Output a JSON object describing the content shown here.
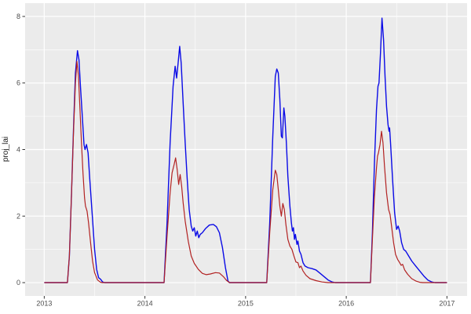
{
  "chart_data": {
    "type": "line",
    "title": "",
    "xlabel": "",
    "ylabel": "proj_lai",
    "grid": "on",
    "legend_position": "none",
    "panel_bg": "#EBEBEB",
    "grid_major_color": "#FFFFFF",
    "grid_minor_color": "#FFFFFF",
    "axis_text_color": "#4d4d4d",
    "tick_mark_color": "#333333",
    "xlim": [
      2012.81,
      2017.2
    ],
    "ylim": [
      -0.4,
      8.4
    ],
    "x_ticks": [
      2013,
      2014,
      2015,
      2016,
      2017
    ],
    "x_tick_labels": [
      "2013",
      "2014",
      "2015",
      "2016",
      "2017"
    ],
    "x_minor_ticks": [
      2013.5,
      2014.5,
      2015.5,
      2016.5
    ],
    "y_ticks": [
      0,
      2,
      4,
      6,
      8
    ],
    "y_tick_labels": [
      "0",
      "2",
      "4",
      "6",
      "8"
    ],
    "y_minor_ticks": [
      1,
      3,
      5,
      7
    ],
    "series": [
      {
        "name": "blue-line",
        "color": "#0B0BE6",
        "points": [
          [
            2013.0,
            0
          ],
          [
            2013.23,
            0
          ],
          [
            2013.25,
            0.8
          ],
          [
            2013.27,
            2.6
          ],
          [
            2013.29,
            4.6
          ],
          [
            2013.31,
            6.3
          ],
          [
            2013.33,
            6.97
          ],
          [
            2013.345,
            6.7
          ],
          [
            2013.36,
            5.9
          ],
          [
            2013.38,
            4.9
          ],
          [
            2013.395,
            4.15
          ],
          [
            2013.405,
            4.0
          ],
          [
            2013.42,
            4.15
          ],
          [
            2013.435,
            3.9
          ],
          [
            2013.45,
            3.2
          ],
          [
            2013.465,
            2.55
          ],
          [
            2013.48,
            1.9
          ],
          [
            2013.5,
            1.0
          ],
          [
            2013.52,
            0.4
          ],
          [
            2013.54,
            0.15
          ],
          [
            2013.56,
            0.1
          ],
          [
            2013.58,
            0.02
          ],
          [
            2013.6,
            0
          ],
          [
            2014.19,
            0
          ],
          [
            2014.22,
            1.8
          ],
          [
            2014.25,
            4.2
          ],
          [
            2014.28,
            5.9
          ],
          [
            2014.3,
            6.5
          ],
          [
            2014.315,
            6.15
          ],
          [
            2014.33,
            6.6
          ],
          [
            2014.345,
            7.1
          ],
          [
            2014.36,
            6.6
          ],
          [
            2014.38,
            5.4
          ],
          [
            2014.4,
            4.2
          ],
          [
            2014.42,
            3.1
          ],
          [
            2014.44,
            2.2
          ],
          [
            2014.46,
            1.7
          ],
          [
            2014.475,
            1.55
          ],
          [
            2014.49,
            1.65
          ],
          [
            2014.505,
            1.4
          ],
          [
            2014.52,
            1.55
          ],
          [
            2014.535,
            1.35
          ],
          [
            2014.55,
            1.45
          ],
          [
            2014.57,
            1.5
          ],
          [
            2014.6,
            1.62
          ],
          [
            2014.64,
            1.73
          ],
          [
            2014.68,
            1.75
          ],
          [
            2014.71,
            1.68
          ],
          [
            2014.74,
            1.5
          ],
          [
            2014.77,
            1.05
          ],
          [
            2014.8,
            0.45
          ],
          [
            2014.825,
            0.05
          ],
          [
            2014.84,
            0
          ],
          [
            2015.21,
            0
          ],
          [
            2015.24,
            1.8
          ],
          [
            2015.27,
            4.4
          ],
          [
            2015.295,
            6.2
          ],
          [
            2015.31,
            6.42
          ],
          [
            2015.325,
            6.3
          ],
          [
            2015.34,
            5.5
          ],
          [
            2015.355,
            4.4
          ],
          [
            2015.365,
            4.35
          ],
          [
            2015.38,
            5.25
          ],
          [
            2015.39,
            5.0
          ],
          [
            2015.405,
            4.2
          ],
          [
            2015.42,
            3.2
          ],
          [
            2015.44,
            2.3
          ],
          [
            2015.455,
            1.8
          ],
          [
            2015.465,
            1.55
          ],
          [
            2015.475,
            1.65
          ],
          [
            2015.485,
            1.3
          ],
          [
            2015.495,
            1.45
          ],
          [
            2015.51,
            1.15
          ],
          [
            2015.52,
            1.25
          ],
          [
            2015.535,
            0.95
          ],
          [
            2015.55,
            0.85
          ],
          [
            2015.57,
            0.6
          ],
          [
            2015.59,
            0.5
          ],
          [
            2015.62,
            0.45
          ],
          [
            2015.66,
            0.42
          ],
          [
            2015.7,
            0.38
          ],
          [
            2015.74,
            0.28
          ],
          [
            2015.78,
            0.18
          ],
          [
            2015.82,
            0.08
          ],
          [
            2015.86,
            0.02
          ],
          [
            2015.89,
            0
          ],
          [
            2016.24,
            0
          ],
          [
            2016.26,
            1.5
          ],
          [
            2016.28,
            3.6
          ],
          [
            2016.3,
            5.2
          ],
          [
            2016.315,
            5.9
          ],
          [
            2016.325,
            6.0
          ],
          [
            2016.34,
            6.9
          ],
          [
            2016.355,
            7.95
          ],
          [
            2016.37,
            7.3
          ],
          [
            2016.385,
            6.2
          ],
          [
            2016.4,
            5.3
          ],
          [
            2016.415,
            4.75
          ],
          [
            2016.425,
            4.55
          ],
          [
            2016.43,
            4.65
          ],
          [
            2016.44,
            4.2
          ],
          [
            2016.46,
            3.1
          ],
          [
            2016.48,
            2.1
          ],
          [
            2016.5,
            1.6
          ],
          [
            2016.515,
            1.7
          ],
          [
            2016.53,
            1.55
          ],
          [
            2016.55,
            1.2
          ],
          [
            2016.57,
            1.0
          ],
          [
            2016.59,
            0.95
          ],
          [
            2016.62,
            0.8
          ],
          [
            2016.65,
            0.65
          ],
          [
            2016.69,
            0.5
          ],
          [
            2016.73,
            0.35
          ],
          [
            2016.77,
            0.2
          ],
          [
            2016.81,
            0.08
          ],
          [
            2016.85,
            0.02
          ],
          [
            2016.88,
            0
          ],
          [
            2017.0,
            0
          ]
        ]
      },
      {
        "name": "darkred-line",
        "color": "#B22222",
        "points": [
          [
            2013.0,
            0
          ],
          [
            2013.23,
            0
          ],
          [
            2013.25,
            0.8
          ],
          [
            2013.27,
            2.6
          ],
          [
            2013.29,
            4.5
          ],
          [
            2013.31,
            6.0
          ],
          [
            2013.325,
            6.65
          ],
          [
            2013.34,
            6.2
          ],
          [
            2013.355,
            5.2
          ],
          [
            2013.37,
            4.2
          ],
          [
            2013.385,
            3.3
          ],
          [
            2013.4,
            2.55
          ],
          [
            2013.41,
            2.3
          ],
          [
            2013.425,
            2.15
          ],
          [
            2013.44,
            1.8
          ],
          [
            2013.46,
            1.2
          ],
          [
            2013.48,
            0.65
          ],
          [
            2013.5,
            0.3
          ],
          [
            2013.53,
            0.08
          ],
          [
            2013.56,
            0.01
          ],
          [
            2013.58,
            0
          ],
          [
            2014.19,
            0
          ],
          [
            2014.22,
            1.4
          ],
          [
            2014.25,
            2.7
          ],
          [
            2014.27,
            3.3
          ],
          [
            2014.29,
            3.55
          ],
          [
            2014.305,
            3.75
          ],
          [
            2014.32,
            3.4
          ],
          [
            2014.335,
            2.95
          ],
          [
            2014.35,
            3.25
          ],
          [
            2014.365,
            2.9
          ],
          [
            2014.38,
            2.4
          ],
          [
            2014.4,
            1.85
          ],
          [
            2014.43,
            1.25
          ],
          [
            2014.46,
            0.8
          ],
          [
            2014.49,
            0.58
          ],
          [
            2014.53,
            0.4
          ],
          [
            2014.57,
            0.28
          ],
          [
            2014.61,
            0.24
          ],
          [
            2014.65,
            0.26
          ],
          [
            2014.7,
            0.3
          ],
          [
            2014.74,
            0.29
          ],
          [
            2014.78,
            0.18
          ],
          [
            2014.81,
            0.07
          ],
          [
            2014.84,
            0
          ],
          [
            2015.21,
            0
          ],
          [
            2015.24,
            1.5
          ],
          [
            2015.27,
            2.8
          ],
          [
            2015.295,
            3.38
          ],
          [
            2015.31,
            3.25
          ],
          [
            2015.325,
            2.8
          ],
          [
            2015.34,
            2.3
          ],
          [
            2015.355,
            2.0
          ],
          [
            2015.37,
            2.38
          ],
          [
            2015.385,
            2.2
          ],
          [
            2015.4,
            1.75
          ],
          [
            2015.42,
            1.3
          ],
          [
            2015.44,
            1.1
          ],
          [
            2015.46,
            1.0
          ],
          [
            2015.48,
            0.8
          ],
          [
            2015.5,
            0.62
          ],
          [
            2015.52,
            0.6
          ],
          [
            2015.535,
            0.45
          ],
          [
            2015.55,
            0.5
          ],
          [
            2015.57,
            0.35
          ],
          [
            2015.6,
            0.22
          ],
          [
            2015.64,
            0.12
          ],
          [
            2015.7,
            0.06
          ],
          [
            2015.76,
            0.02
          ],
          [
            2015.82,
            0
          ],
          [
            2016.24,
            0
          ],
          [
            2016.26,
            1.3
          ],
          [
            2016.28,
            2.6
          ],
          [
            2016.3,
            3.45
          ],
          [
            2016.31,
            3.8
          ],
          [
            2016.32,
            3.9
          ],
          [
            2016.335,
            4.15
          ],
          [
            2016.35,
            4.55
          ],
          [
            2016.365,
            4.2
          ],
          [
            2016.38,
            3.5
          ],
          [
            2016.4,
            2.7
          ],
          [
            2016.42,
            2.2
          ],
          [
            2016.435,
            2.05
          ],
          [
            2016.45,
            1.7
          ],
          [
            2016.47,
            1.2
          ],
          [
            2016.49,
            0.85
          ],
          [
            2016.51,
            0.7
          ],
          [
            2016.53,
            0.6
          ],
          [
            2016.545,
            0.52
          ],
          [
            2016.56,
            0.55
          ],
          [
            2016.58,
            0.38
          ],
          [
            2016.61,
            0.25
          ],
          [
            2016.65,
            0.12
          ],
          [
            2016.69,
            0.05
          ],
          [
            2016.73,
            0.01
          ],
          [
            2016.76,
            0
          ],
          [
            2017.0,
            0
          ]
        ]
      }
    ]
  }
}
